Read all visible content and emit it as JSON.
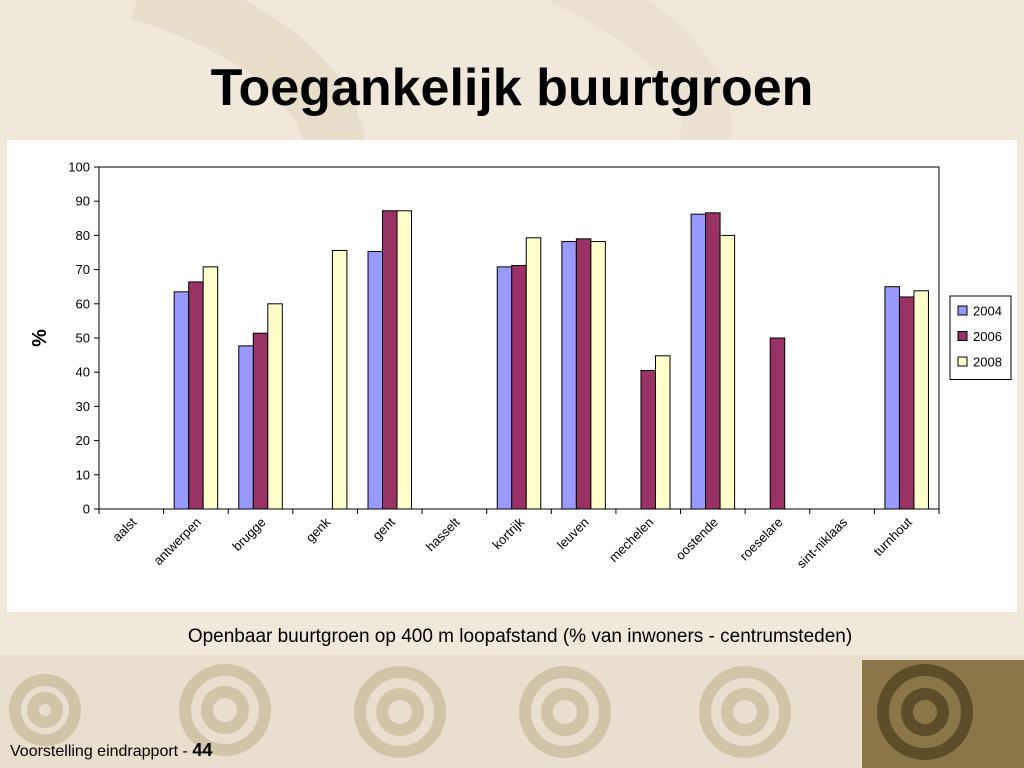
{
  "slide": {
    "title": "Toegankelijk buurtgroen",
    "caption": "Openbaar buurtgroen op 400 m loopafstand (% van inwoners - centrumsteden)",
    "footer_text": "Voorstelling eindrapport - ",
    "page_number": "44"
  },
  "chart_data": {
    "type": "bar",
    "title": "",
    "xlabel": "",
    "ylabel": "%",
    "ylim": [
      0,
      100
    ],
    "yticks": [
      0,
      10,
      20,
      30,
      40,
      50,
      60,
      70,
      80,
      90,
      100
    ],
    "grid": false,
    "legend": "right",
    "categories": [
      "aalst",
      "antwerpen",
      "brugge",
      "genk",
      "gent",
      "hasselt",
      "kortrijk",
      "leuven",
      "mechelen",
      "oostende",
      "roeselare",
      "sint-niklaas",
      "turnhout"
    ],
    "series": [
      {
        "name": "2004",
        "color": "#9999ff",
        "values": [
          null,
          63.5,
          47.7,
          null,
          75.3,
          null,
          70.8,
          78.2,
          null,
          86.2,
          null,
          null,
          65
        ]
      },
      {
        "name": "2006",
        "color": "#993366",
        "values": [
          null,
          66.4,
          51.4,
          null,
          87.2,
          null,
          71.2,
          79,
          40.5,
          86.6,
          50,
          null,
          62
        ]
      },
      {
        "name": "2008",
        "color": "#ffffcc",
        "values": [
          null,
          70.8,
          60,
          75.6,
          87.2,
          null,
          79.3,
          78.2,
          44.8,
          80,
          null,
          null,
          63.8
        ]
      }
    ]
  }
}
